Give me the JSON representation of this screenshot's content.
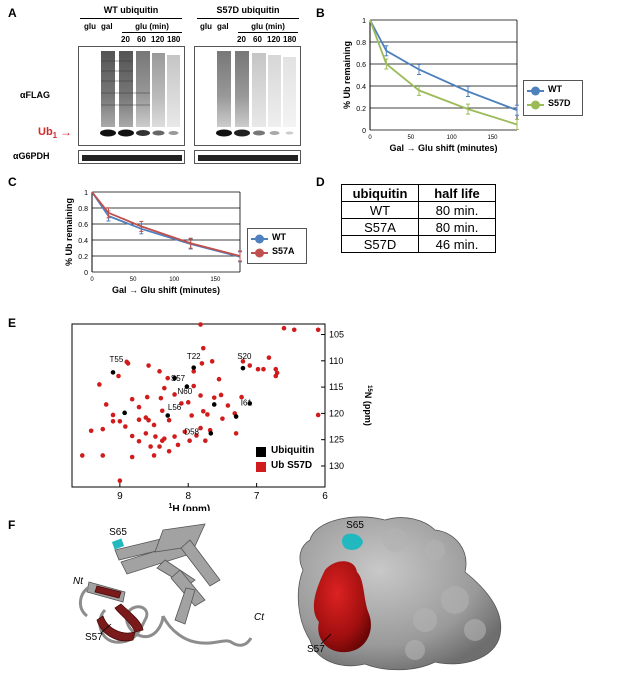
{
  "panel_a": {
    "letter": "A",
    "wt_title": "WT ubiquitin",
    "s57d_title": "S57D ubiquitin",
    "lane_glu": "glu",
    "lane_gal": "gal",
    "glu_min": "glu (min)",
    "times": [
      "20",
      "60",
      "120",
      "180"
    ],
    "flag_label": "αFLAG",
    "ub1_label": "Ub",
    "ub1_sub": "1",
    "g6pdh_label": "αG6PDH",
    "accent_color": "#d42a2a"
  },
  "panel_b": {
    "letter": "B",
    "legend": [
      "WT",
      "S57D"
    ]
  },
  "panel_c": {
    "letter": "C",
    "legend": [
      "WT",
      "S57A"
    ]
  },
  "panel_d": {
    "letter": "D",
    "headers": [
      "ubiquitin",
      "half life"
    ],
    "rows": [
      [
        "WT",
        "80 min."
      ],
      [
        "S57A",
        "80 min."
      ],
      [
        "S57D",
        "46 min."
      ]
    ]
  },
  "panel_e": {
    "letter": "E",
    "legend": [
      "Ubiquitin",
      "Ub S57D"
    ],
    "legend_colors": [
      "#000000",
      "#d01c1c"
    ]
  },
  "panel_f": {
    "letter": "F",
    "s65": "S65",
    "s57": "S57",
    "nt": "Nt",
    "ct": "Ct",
    "colors": {
      "grey": "#9a9a9a",
      "red": "#b01818",
      "cyan": "#22b8c0"
    }
  },
  "chart_data": [
    {
      "type": "line",
      "title": "",
      "xlabel": "Gal → Glu shift (minutes)",
      "ylabel": "% Ub remaining",
      "xlim": [
        0,
        180
      ],
      "ylim": [
        0,
        1
      ],
      "xticks": [
        "0",
        "50",
        "100",
        "150"
      ],
      "yticks": [
        "0",
        "0.2",
        "0.4",
        "0.6",
        "0.8",
        "1"
      ],
      "grid": true,
      "legend_position": "right",
      "x": [
        0,
        20,
        60,
        120,
        180
      ],
      "series": [
        {
          "name": "WT",
          "color": "#4e81bd",
          "values": [
            1.0,
            0.72,
            0.55,
            0.35,
            0.18
          ]
        },
        {
          "name": "S57D",
          "color": "#9bbb59",
          "values": [
            1.0,
            0.6,
            0.36,
            0.19,
            0.05
          ]
        }
      ]
    },
    {
      "type": "line",
      "title": "",
      "xlabel": "Gal → Glu shift (minutes)",
      "ylabel": "% Ub remaining",
      "xlim": [
        0,
        180
      ],
      "ylim": [
        0,
        1
      ],
      "xticks": [
        "0",
        "50",
        "100",
        "150"
      ],
      "yticks": [
        "0",
        "0.2",
        "0.4",
        "0.6",
        "0.8",
        "1"
      ],
      "grid": true,
      "legend_position": "right",
      "x": [
        0,
        20,
        60,
        120,
        180
      ],
      "series": [
        {
          "name": "WT",
          "color": "#4e81bd",
          "values": [
            1.0,
            0.7,
            0.54,
            0.35,
            0.19
          ]
        },
        {
          "name": "S57A",
          "color": "#c0504d",
          "values": [
            1.0,
            0.74,
            0.57,
            0.36,
            0.2
          ]
        }
      ]
    },
    {
      "type": "scatter",
      "title": "",
      "xlabel": "1H (ppm)",
      "ylabel": "15N (ppm)",
      "x_reversed": true,
      "y_reversed": true,
      "xlim": [
        6,
        9.7
      ],
      "ylim": [
        103,
        134
      ],
      "xticks": [
        "9",
        "8",
        "7",
        "6"
      ],
      "yticks": [
        "105",
        "110",
        "115",
        "120",
        "125",
        "130"
      ],
      "annotations": [
        {
          "label": "T55",
          "x": 9.05,
          "y": 110.2
        },
        {
          "label": "T22",
          "x": 7.92,
          "y": 109.7
        },
        {
          "label": "S20",
          "x": 7.18,
          "y": 109.7
        },
        {
          "label": "S57",
          "x": 8.15,
          "y": 113.8
        },
        {
          "label": "N60",
          "x": 8.05,
          "y": 116.3
        },
        {
          "label": "I61",
          "x": 7.15,
          "y": 118.5
        },
        {
          "label": "L56",
          "x": 8.2,
          "y": 119.4
        },
        {
          "label": "D58",
          "x": 7.95,
          "y": 124.0
        }
      ],
      "series": [
        {
          "name": "Ubiquitin",
          "color": "#000000",
          "points": [
            [
              9.1,
              112.2
            ],
            [
              8.93,
              119.9
            ],
            [
              8.2,
              113.3
            ],
            [
              8.02,
              114.9
            ],
            [
              7.92,
              111.3
            ],
            [
              7.2,
              111.4
            ],
            [
              7.3,
              120.6
            ],
            [
              7.67,
              123.8
            ],
            [
              7.62,
              118.3
            ],
            [
              8.3,
              120.4
            ],
            [
              7.1,
              118.1
            ]
          ]
        },
        {
          "name": "Ub S57D",
          "color": "#d01c1c",
          "points": [
            [
              9.02,
              112.9
            ],
            [
              8.88,
              110.5
            ],
            [
              8.58,
              110.9
            ],
            [
              8.42,
              112.0
            ],
            [
              8.3,
              113.3
            ],
            [
              7.92,
              112.0
            ],
            [
              7.8,
              110.5
            ],
            [
              7.65,
              110.1
            ],
            [
              7.2,
              110.1
            ],
            [
              7.1,
              110.9
            ],
            [
              6.98,
              111.6
            ],
            [
              6.9,
              111.6
            ],
            [
              6.82,
              109.4
            ],
            [
              6.72,
              111.6
            ],
            [
              6.7,
              112.3
            ],
            [
              6.72,
              112.9
            ],
            [
              6.45,
              104.1
            ],
            [
              6.1,
              104.1
            ],
            [
              7.82,
              103.1
            ],
            [
              6.6,
              103.8
            ],
            [
              9.3,
              114.5
            ],
            [
              9.2,
              118.3
            ],
            [
              9.1,
              120.3
            ],
            [
              9.0,
              121.5
            ],
            [
              8.82,
              117.3
            ],
            [
              8.72,
              118.8
            ],
            [
              8.6,
              116.9
            ],
            [
              8.58,
              121.3
            ],
            [
              8.4,
              117.1
            ],
            [
              8.38,
              119.5
            ],
            [
              8.28,
              121.3
            ],
            [
              8.2,
              116.4
            ],
            [
              8.1,
              118.1
            ],
            [
              8.0,
              117.9
            ],
            [
              7.92,
              114.8
            ],
            [
              7.82,
              116.6
            ],
            [
              7.78,
              119.6
            ],
            [
              7.72,
              120.2
            ],
            [
              7.62,
              117.0
            ],
            [
              7.52,
              116.5
            ],
            [
              7.42,
              118.5
            ],
            [
              7.32,
              120.0
            ],
            [
              7.22,
              116.9
            ],
            [
              7.55,
              113.5
            ],
            [
              9.42,
              123.3
            ],
            [
              9.25,
              123.0
            ],
            [
              9.1,
              121.5
            ],
            [
              8.92,
              122.5
            ],
            [
              8.82,
              124.3
            ],
            [
              8.72,
              125.3
            ],
            [
              8.62,
              123.8
            ],
            [
              8.55,
              126.3
            ],
            [
              8.48,
              124.4
            ],
            [
              8.38,
              125.2
            ],
            [
              8.28,
              127.2
            ],
            [
              8.2,
              124.4
            ],
            [
              8.15,
              126.0
            ],
            [
              8.05,
              123.5
            ],
            [
              7.98,
              125.2
            ],
            [
              7.88,
              124.2
            ],
            [
              7.82,
              122.8
            ],
            [
              7.75,
              125.2
            ],
            [
              7.68,
              123.2
            ],
            [
              9.55,
              128.0
            ],
            [
              9.25,
              128.0
            ],
            [
              9.0,
              132.8
            ],
            [
              8.82,
              128.3
            ],
            [
              8.5,
              128.0
            ],
            [
              8.42,
              126.3
            ],
            [
              8.35,
              124.8
            ],
            [
              8.62,
              120.8
            ],
            [
              8.5,
              122.2
            ],
            [
              8.72,
              121.2
            ],
            [
              6.1,
              120.3
            ],
            [
              7.3,
              123.8
            ],
            [
              7.5,
              121.0
            ],
            [
              7.95,
              120.4
            ],
            [
              8.9,
              110.2
            ],
            [
              8.35,
              115.2
            ],
            [
              7.78,
              107.6
            ]
          ]
        }
      ]
    }
  ]
}
